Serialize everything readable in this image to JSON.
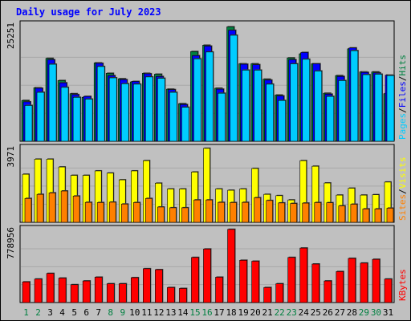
{
  "chart_data": {
    "type": "bar",
    "title": "Daily usage for July 2023",
    "categories": [
      "1",
      "2",
      "3",
      "4",
      "5",
      "6",
      "7",
      "8",
      "9",
      "10",
      "11",
      "12",
      "13",
      "14",
      "15",
      "16",
      "17",
      "18",
      "19",
      "20",
      "21",
      "22",
      "23",
      "24",
      "25",
      "26",
      "27",
      "28",
      "29",
      "30",
      "31"
    ],
    "weekend_days": [
      1,
      2,
      8,
      9,
      15,
      16,
      22,
      23,
      29,
      30
    ],
    "panels": [
      {
        "name": "hits",
        "ymax_label": "25251",
        "ylim": [
          0,
          25251
        ],
        "legend": [
          {
            "text": "Pages",
            "color": "#00ccff"
          },
          {
            "text": "Files",
            "color": "#0000ff"
          },
          {
            "text": "Hits",
            "color": "#008040"
          }
        ],
        "series": [
          {
            "name": "Hits",
            "color": "#008040",
            "values": [
              9000,
              11800,
              18300,
              13400,
              10500,
              9700,
              17300,
              15000,
              13800,
              13100,
              15000,
              14800,
              11500,
              8300,
              19800,
              21200,
              11700,
              25251,
              17100,
              17100,
              13700,
              10200,
              18400,
              19300,
              17100,
              10600,
              14500,
              20400,
              15300,
              15300,
              10500
            ]
          },
          {
            "name": "Files",
            "color": "#0000ff",
            "values": [
              8700,
              11700,
              18000,
              12900,
              10300,
              9900,
              17200,
              14500,
              13600,
              13200,
              14900,
              14300,
              11400,
              8100,
              18900,
              21000,
              11500,
              24500,
              17000,
              16900,
              13500,
              10000,
              18000,
              19600,
              17100,
              10400,
              14300,
              20600,
              15200,
              15100,
              14600
            ]
          },
          {
            "name": "Pages",
            "color": "#00ccff",
            "values": [
              7900,
              10800,
              17000,
              11900,
              9700,
              9300,
              16500,
              14000,
              12700,
              12600,
              14200,
              13900,
              10800,
              7500,
              18200,
              19700,
              10600,
              23400,
              15700,
              15700,
              12600,
              9000,
              17100,
              18100,
              15500,
              9900,
              13400,
              20000,
              14700,
              14800,
              14500
            ]
          }
        ]
      },
      {
        "name": "visits",
        "ymax_label": "3971",
        "ylim": [
          0,
          3971
        ],
        "legend": [
          {
            "text": "Sites",
            "color": "#ff8000"
          },
          {
            "text": "Visits",
            "color": "#ffff00"
          }
        ],
        "series": [
          {
            "name": "Visits",
            "color": "#ffff00",
            "values": [
              2580,
              3390,
              3390,
              2970,
              2520,
              2520,
              2760,
              2640,
              2280,
              2760,
              3310,
              2100,
              1790,
              1790,
              2700,
              3971,
              1790,
              1720,
              1790,
              2890,
              1500,
              1430,
              1200,
              3310,
              3010,
              2110,
              1460,
              1830,
              1460,
              1480,
              2160
            ]
          },
          {
            "name": "Sites",
            "color": "#ff8000",
            "values": [
              1280,
              1500,
              1580,
              1680,
              1410,
              1070,
              1060,
              1080,
              980,
              1060,
              1280,
              820,
              780,
              780,
              1200,
              1200,
              1070,
              1060,
              1070,
              1320,
              1170,
              1040,
              1010,
              1030,
              1060,
              1050,
              880,
              970,
              720,
              720,
              760
            ]
          }
        ]
      },
      {
        "name": "kbytes",
        "ymax_label": "778956",
        "ylim": [
          0,
          778956
        ],
        "legend": [
          {
            "text": "KBytes",
            "color": "#ff0000"
          }
        ],
        "series": [
          {
            "name": "KBytes",
            "color": "#ff0000",
            "values": [
              220000,
              250000,
              310000,
              260000,
              190000,
              230000,
              270000,
              200000,
              200000,
              265000,
              360000,
              350000,
              160000,
              150000,
              480000,
              570000,
              270000,
              778956,
              450000,
              440000,
              160000,
              200000,
              480000,
              580000,
              410000,
              230000,
              330000,
              470000,
              420000,
              460000,
              250000
            ]
          }
        ]
      }
    ]
  }
}
